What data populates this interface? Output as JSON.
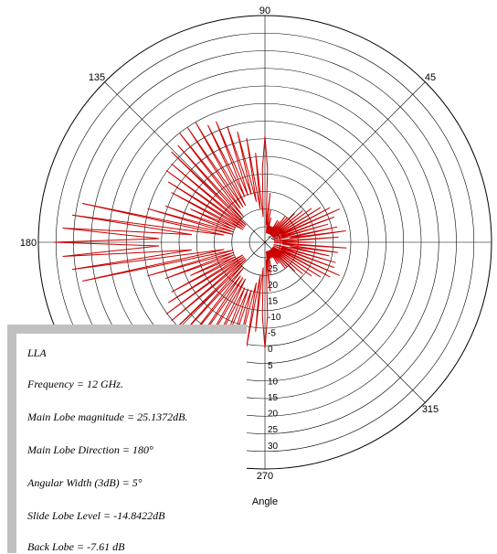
{
  "chart_data": {
    "type": "polar-line",
    "angle_ticks": [
      "90",
      "45",
      "315",
      "270",
      "135",
      "180"
    ],
    "radial_tick_labels": [
      "-35",
      "-30",
      "25",
      "20",
      "15",
      "-10",
      "-5",
      "0",
      "5",
      "10",
      "15",
      "20",
      "25",
      "30"
    ],
    "axis_title": "Angle",
    "grid": true,
    "series_color": "#cc0000",
    "series": [
      {
        "main_lobe_direction": 180,
        "main_lobe_magnitude_db": 25.1372,
        "points": [
          [
            0,
            5
          ],
          [
            2,
            1
          ],
          [
            4,
            8
          ],
          [
            6,
            0
          ],
          [
            8,
            9
          ],
          [
            10,
            2
          ],
          [
            12,
            8
          ],
          [
            14,
            0
          ],
          [
            16,
            7
          ],
          [
            18,
            1
          ],
          [
            20,
            8
          ],
          [
            22,
            0
          ],
          [
            24,
            9
          ],
          [
            26,
            1
          ],
          [
            28,
            8
          ],
          [
            30,
            0
          ],
          [
            32,
            7
          ],
          [
            34,
            0
          ],
          [
            36,
            6
          ],
          [
            38,
            0
          ],
          [
            40,
            5
          ],
          [
            42,
            0
          ],
          [
            44,
            4
          ],
          [
            46,
            0
          ],
          [
            48,
            3
          ],
          [
            50,
            0
          ],
          [
            52,
            3
          ],
          [
            54,
            0
          ],
          [
            56,
            2
          ],
          [
            58,
            0
          ],
          [
            60,
            2
          ],
          [
            62,
            0
          ],
          [
            64,
            1
          ],
          [
            66,
            0
          ],
          [
            68,
            1
          ],
          [
            70,
            0
          ],
          [
            72,
            1
          ],
          [
            74,
            0
          ],
          [
            76,
            2
          ],
          [
            78,
            0
          ],
          [
            80,
            3
          ],
          [
            82,
            0
          ],
          [
            84,
            5
          ],
          [
            86,
            1
          ],
          [
            88,
            8
          ],
          [
            90,
            12
          ],
          [
            92,
            8
          ],
          [
            94,
            2
          ],
          [
            96,
            10
          ],
          [
            98,
            3
          ],
          [
            100,
            12
          ],
          [
            102,
            4
          ],
          [
            104,
            13
          ],
          [
            106,
            5
          ],
          [
            108,
            14
          ],
          [
            110,
            5
          ],
          [
            112,
            15
          ],
          [
            114,
            5
          ],
          [
            116,
            15
          ],
          [
            118,
            4
          ],
          [
            120,
            16
          ],
          [
            122,
            4
          ],
          [
            124,
            16
          ],
          [
            126,
            4
          ],
          [
            128,
            16
          ],
          [
            130,
            3
          ],
          [
            132,
            15
          ],
          [
            134,
            3
          ],
          [
            136,
            15
          ],
          [
            138,
            2
          ],
          [
            140,
            14
          ],
          [
            142,
            2
          ],
          [
            144,
            14
          ],
          [
            146,
            2
          ],
          [
            148,
            13
          ],
          [
            150,
            2
          ],
          [
            152,
            12
          ],
          [
            154,
            3
          ],
          [
            156,
            9
          ],
          [
            158,
            3
          ],
          [
            160,
            12
          ],
          [
            162,
            3
          ],
          [
            164,
            14
          ],
          [
            166,
            3
          ],
          [
            168,
            22
          ],
          [
            170,
            4
          ],
          [
            172,
            23
          ],
          [
            174,
            8
          ],
          [
            176,
            24
          ],
          [
            178,
            12
          ],
          [
            180,
            25
          ],
          [
            182,
            12
          ],
          [
            184,
            24
          ],
          [
            186,
            8
          ],
          [
            188,
            23
          ],
          [
            190,
            4
          ],
          [
            192,
            22
          ],
          [
            194,
            3
          ],
          [
            196,
            14
          ],
          [
            198,
            3
          ],
          [
            200,
            12
          ],
          [
            202,
            3
          ],
          [
            204,
            9
          ],
          [
            206,
            3
          ],
          [
            208,
            12
          ],
          [
            210,
            2
          ],
          [
            212,
            13
          ],
          [
            214,
            2
          ],
          [
            216,
            14
          ],
          [
            218,
            2
          ],
          [
            220,
            14
          ],
          [
            222,
            2
          ],
          [
            224,
            15
          ],
          [
            226,
            3
          ],
          [
            228,
            15
          ],
          [
            230,
            3
          ],
          [
            232,
            16
          ],
          [
            234,
            4
          ],
          [
            236,
            16
          ],
          [
            238,
            4
          ],
          [
            240,
            16
          ],
          [
            242,
            4
          ],
          [
            244,
            15
          ],
          [
            246,
            5
          ],
          [
            248,
            15
          ],
          [
            250,
            5
          ],
          [
            252,
            14
          ],
          [
            254,
            5
          ],
          [
            256,
            13
          ],
          [
            258,
            4
          ],
          [
            260,
            12
          ],
          [
            262,
            3
          ],
          [
            264,
            10
          ],
          [
            266,
            2
          ],
          [
            268,
            8
          ],
          [
            270,
            12
          ],
          [
            272,
            8
          ],
          [
            274,
            1
          ],
          [
            276,
            5
          ],
          [
            278,
            0
          ],
          [
            280,
            3
          ],
          [
            282,
            0
          ],
          [
            284,
            2
          ],
          [
            286,
            0
          ],
          [
            288,
            1
          ],
          [
            290,
            0
          ],
          [
            292,
            1
          ],
          [
            294,
            0
          ],
          [
            296,
            1
          ],
          [
            298,
            0
          ],
          [
            300,
            2
          ],
          [
            302,
            0
          ],
          [
            304,
            2
          ],
          [
            306,
            0
          ],
          [
            308,
            3
          ],
          [
            310,
            0
          ],
          [
            312,
            3
          ],
          [
            314,
            0
          ],
          [
            316,
            4
          ],
          [
            318,
            0
          ],
          [
            320,
            5
          ],
          [
            322,
            0
          ],
          [
            324,
            6
          ],
          [
            326,
            0
          ],
          [
            328,
            7
          ],
          [
            330,
            0
          ],
          [
            332,
            8
          ],
          [
            334,
            1
          ],
          [
            336,
            9
          ],
          [
            338,
            0
          ],
          [
            340,
            8
          ],
          [
            342,
            1
          ],
          [
            344,
            8
          ],
          [
            346,
            0
          ],
          [
            348,
            7
          ],
          [
            350,
            2
          ],
          [
            352,
            8
          ],
          [
            354,
            1
          ],
          [
            356,
            9
          ],
          [
            358,
            0
          ]
        ]
      }
    ],
    "r_min": -40,
    "r_max": 30
  },
  "info": {
    "title": "LLA",
    "frequency": "Frequency = 12 GHz.",
    "main_lobe_magnitude": "Main Lobe magnitude = 25.1372dB.",
    "main_lobe_direction": "Main Lobe Direction = 180°",
    "angular_width": "Angular Width (3dB) = 5°",
    "side_lobe_level": "Slide Lobe Level = -14.8422dB",
    "back_lobe": "Back Lobe = -7.61 dB"
  }
}
